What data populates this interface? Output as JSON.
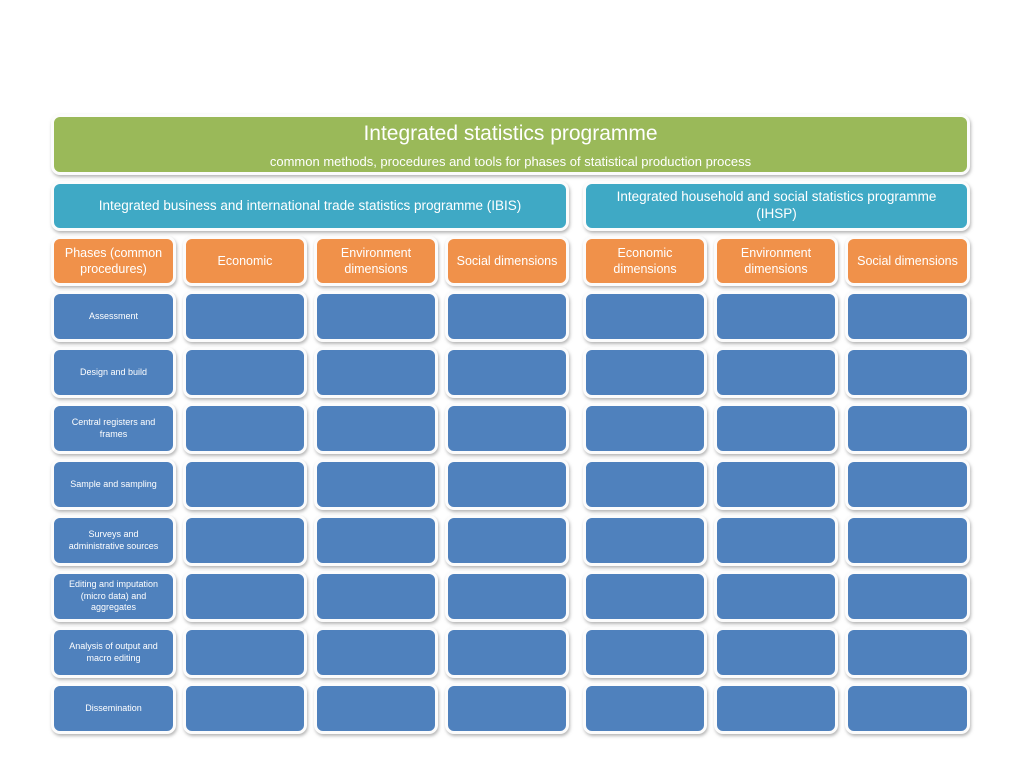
{
  "banner": {
    "title": "Integrated statistics programme",
    "subtitle": "common methods, procedures and tools for phases of statistical production process"
  },
  "programmes": {
    "ibis": "Integrated business and international trade statistics programme (IBIS)",
    "ihsp": "Integrated household and social statistics programme (IHSP)"
  },
  "column_headers": [
    "Phases (common procedures)",
    "Economic",
    "Environment dimensions",
    "Social dimensions",
    "Economic dimensions",
    "Environment dimensions",
    "Social dimensions"
  ],
  "phases": [
    "Assessment",
    "Design and build",
    "Central registers and frames",
    "Sample and sampling",
    "Surveys and administrative sources",
    "Editing and imputation (micro data)  and aggregates",
    "Analysis of output and macro editing",
    "Dissemination"
  ],
  "grid": {
    "rows": 8,
    "data_columns_per_programme": 3,
    "cells_empty": true
  },
  "colors": {
    "banner_green": "#9ab959",
    "programme_teal": "#3fa9c5",
    "header_orange": "#f0914a",
    "cell_blue": "#4f81bd",
    "text": "#ffffff",
    "background": "#ffffff"
  }
}
